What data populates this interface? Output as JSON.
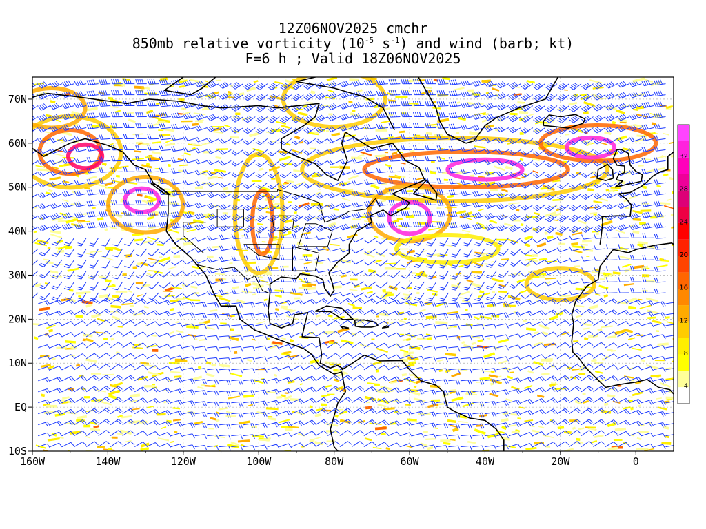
{
  "titles": {
    "line1": "12Z06NOV2025 cmchr",
    "line2_pre": "850mb relative vorticity (10",
    "line2_sup1": "-5",
    "line2_mid": " s",
    "line2_sup2": "-1",
    "line2_post": ") and wind (barb; kt)",
    "line3": "F=6 h ; Valid 18Z06NOV2025"
  },
  "axes": {
    "lon_labels": [
      "160W",
      "140W",
      "120W",
      "100W",
      "80W",
      "60W",
      "40W",
      "20W",
      "0"
    ],
    "lon_values": [
      -160,
      -140,
      -120,
      -100,
      -80,
      -60,
      -40,
      -20,
      0
    ],
    "lat_labels": [
      "70N",
      "60N",
      "50N",
      "40N",
      "30N",
      "20N",
      "10N",
      "EQ",
      "10S"
    ],
    "lat_values": [
      70,
      60,
      50,
      40,
      30,
      20,
      10,
      0,
      -10
    ],
    "lon_range": [
      -160,
      10
    ],
    "lat_range": [
      -10,
      75
    ]
  },
  "colorbar": {
    "labels": [
      "4",
      "8",
      "12",
      "16",
      "20",
      "24",
      "28",
      "32"
    ],
    "colors": [
      "#ffffff",
      "#ffff99",
      "#ffff00",
      "#ffee00",
      "#ffcc00",
      "#ffaa00",
      "#ff8800",
      "#ff6600",
      "#ff4400",
      "#ff2200",
      "#ff0000",
      "#ee0044",
      "#dd0077",
      "#ee0099",
      "#ff00bb",
      "#ff22dd",
      "#ff44ff"
    ]
  },
  "colors": {
    "barb": "#1e3cff",
    "coast": "#000000",
    "grid": "#9a9a9a"
  }
}
